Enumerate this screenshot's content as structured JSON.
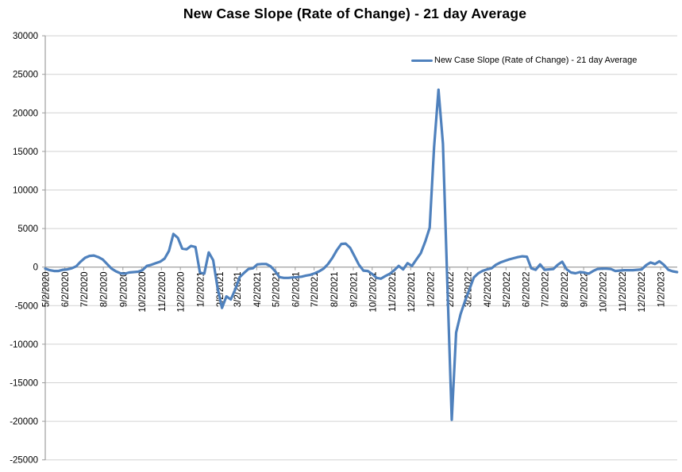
{
  "chart_data": {
    "type": "line",
    "title": "New Case Slope (Rate of Change) - 21 day Average",
    "legend_label": "New Case Slope (Rate of Change) - 21 day Average",
    "legend_position": "top-right",
    "grid": true,
    "ylim": [
      -25000,
      30000
    ],
    "ytick_step": 5000,
    "y_tick_labels": [
      "30000",
      "25000",
      "20000",
      "15000",
      "10000",
      "5000",
      "0",
      "-5000",
      "-10000",
      "-15000",
      "-20000",
      "-25000"
    ],
    "x_tick_labels": [
      "5/2/2020",
      "6/2/2020",
      "7/2/2020",
      "8/2/2020",
      "9/2/2020",
      "10/2/2020",
      "11/2/2020",
      "12/2/2020",
      "1/2/2021",
      "2/2/2021",
      "3/2/2021",
      "4/2/2021",
      "5/2/2021",
      "6/2/2021",
      "7/2/2021",
      "8/2/2021",
      "9/2/2021",
      "10/2/2021",
      "11/2/2021",
      "12/2/2021",
      "1/2/2022",
      "2/2/2022",
      "3/2/2022",
      "4/2/2022",
      "5/2/2022",
      "6/2/2022",
      "7/2/2022",
      "8/2/2022",
      "9/2/2022",
      "10/2/2022",
      "11/2/2022",
      "12/2/2022",
      "1/2/2023"
    ],
    "colors": {
      "line": "#4F81BD",
      "gridline": "#D2D2D2",
      "axis": "#9C9C9C",
      "text": "#000000",
      "background": "#FFFFFF"
    },
    "series": [
      {
        "name": "New Case Slope (Rate of Change) - 21 day Average",
        "dates": [
          "5/2/2020",
          "5/9/2020",
          "5/16/2020",
          "5/23/2020",
          "5/30/2020",
          "6/6/2020",
          "6/13/2020",
          "6/20/2020",
          "6/27/2020",
          "7/4/2020",
          "7/11/2020",
          "7/18/2020",
          "7/25/2020",
          "8/1/2020",
          "8/8/2020",
          "8/15/2020",
          "8/22/2020",
          "8/29/2020",
          "9/5/2020",
          "9/12/2020",
          "9/19/2020",
          "9/26/2020",
          "10/3/2020",
          "10/10/2020",
          "10/17/2020",
          "10/24/2020",
          "10/31/2020",
          "11/7/2020",
          "11/14/2020",
          "11/21/2020",
          "11/28/2020",
          "12/5/2020",
          "12/12/2020",
          "12/19/2020",
          "12/26/2020",
          "1/2/2021",
          "1/9/2021",
          "1/16/2021",
          "1/23/2021",
          "1/30/2021",
          "2/6/2021",
          "2/13/2021",
          "2/20/2021",
          "2/27/2021",
          "3/6/2021",
          "3/13/2021",
          "3/20/2021",
          "3/27/2021",
          "4/3/2021",
          "4/10/2021",
          "4/17/2021",
          "4/24/2021",
          "5/1/2021",
          "5/8/2021",
          "5/15/2021",
          "5/22/2021",
          "5/29/2021",
          "6/5/2021",
          "6/12/2021",
          "6/19/2021",
          "6/26/2021",
          "7/3/2021",
          "7/10/2021",
          "7/17/2021",
          "7/24/2021",
          "7/31/2021",
          "8/7/2021",
          "8/14/2021",
          "8/21/2021",
          "8/28/2021",
          "9/4/2021",
          "9/11/2021",
          "9/18/2021",
          "9/25/2021",
          "10/2/2021",
          "10/9/2021",
          "10/16/2021",
          "10/23/2021",
          "10/30/2021",
          "11/6/2021",
          "11/13/2021",
          "11/20/2021",
          "11/27/2021",
          "12/4/2021",
          "12/11/2021",
          "12/18/2021",
          "12/25/2021",
          "1/1/2022",
          "1/8/2022",
          "1/15/2022",
          "1/22/2022",
          "1/29/2022",
          "2/5/2022",
          "2/12/2022",
          "2/19/2022",
          "2/26/2022",
          "3/5/2022",
          "3/12/2022",
          "3/19/2022",
          "3/26/2022",
          "4/2/2022",
          "4/9/2022",
          "4/16/2022",
          "4/23/2022",
          "4/30/2022",
          "5/7/2022",
          "5/14/2022",
          "5/21/2022",
          "5/28/2022",
          "6/4/2022",
          "6/11/2022",
          "6/18/2022",
          "6/25/2022",
          "7/2/2022",
          "7/9/2022",
          "7/16/2022",
          "7/23/2022",
          "7/30/2022",
          "8/6/2022",
          "8/13/2022",
          "8/20/2022",
          "8/27/2022",
          "9/3/2022",
          "9/10/2022",
          "9/17/2022",
          "9/24/2022",
          "10/1/2022",
          "10/8/2022",
          "10/15/2022",
          "10/22/2022",
          "10/29/2022",
          "11/5/2022",
          "11/12/2022",
          "11/19/2022",
          "11/26/2022",
          "12/3/2022",
          "12/10/2022",
          "12/17/2022",
          "12/24/2022",
          "12/31/2022",
          "1/7/2023",
          "1/14/2023",
          "1/21/2023",
          "1/28/2023"
        ],
        "values": [
          -200,
          -400,
          -500,
          -500,
          -350,
          -300,
          -150,
          100,
          700,
          1200,
          1450,
          1500,
          1300,
          1000,
          400,
          -200,
          -550,
          -800,
          -850,
          -700,
          -650,
          -600,
          -400,
          150,
          300,
          500,
          700,
          1100,
          2100,
          4300,
          3800,
          2400,
          2300,
          2750,
          2600,
          -700,
          -850,
          1900,
          900,
          -2700,
          -5300,
          -3800,
          -4200,
          -2900,
          -1300,
          -750,
          -250,
          -150,
          350,
          400,
          400,
          100,
          -500,
          -1300,
          -1400,
          -1400,
          -1350,
          -1300,
          -1250,
          -1100,
          -1000,
          -800,
          -550,
          -200,
          400,
          1200,
          2200,
          3000,
          3050,
          2500,
          1400,
          300,
          -450,
          -500,
          -900,
          -1400,
          -1500,
          -1150,
          -850,
          -400,
          150,
          -300,
          500,
          150,
          1000,
          1800,
          3300,
          5100,
          15500,
          23000,
          16000,
          -2000,
          -19800,
          -8500,
          -6100,
          -4400,
          -2900,
          -1350,
          -800,
          -480,
          -300,
          -150,
          300,
          600,
          800,
          1000,
          1150,
          1300,
          1400,
          1350,
          -150,
          -350,
          350,
          -350,
          -300,
          -250,
          300,
          700,
          -300,
          -700,
          -800,
          -650,
          -700,
          -850,
          -500,
          -250,
          -200,
          -200,
          -250,
          -500,
          -450,
          -400,
          -400,
          -400,
          -350,
          -300,
          250,
          600,
          400,
          750,
          300,
          -350,
          -550,
          -650
        ]
      }
    ]
  }
}
